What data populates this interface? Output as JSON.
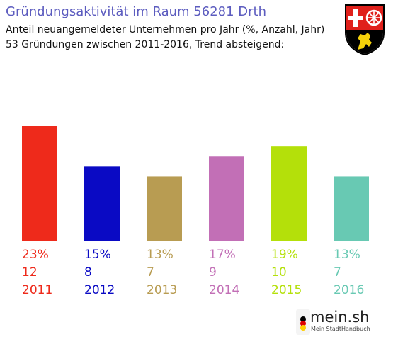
{
  "header": {
    "title": "Gründungsaktivität im Raum 56281 Drth",
    "subtitle_line1": "Anteil neuangemeldeter Unternehmen pro Jahr (%, Anzahl, Jahr)",
    "subtitle_line2": "53 Gründungen zwischen 2011-2016, Trend absteigend:"
  },
  "crest": {
    "icon": "rhineland-palatinate-coat-of-arms-icon"
  },
  "logo": {
    "name": "mein.sh",
    "tagline": "Mein StadtHandbuch",
    "icon": "germany-flag-dot-icon"
  },
  "chart_data": {
    "type": "bar",
    "categories": [
      "2011",
      "2012",
      "2013",
      "2014",
      "2015",
      "2016"
    ],
    "values": [
      23,
      15,
      13,
      17,
      19,
      13
    ],
    "percent_labels": [
      "23%",
      "15%",
      "13%",
      "17%",
      "19%",
      "13%"
    ],
    "counts": [
      "12",
      "8",
      "7",
      "9",
      "10",
      "7"
    ],
    "colors": [
      "#ee2a1b",
      "#0a0ac4",
      "#b89c52",
      "#c26fb6",
      "#b4e00a",
      "#68c9b3"
    ],
    "ylim": [
      0,
      23
    ],
    "grid": false
  }
}
